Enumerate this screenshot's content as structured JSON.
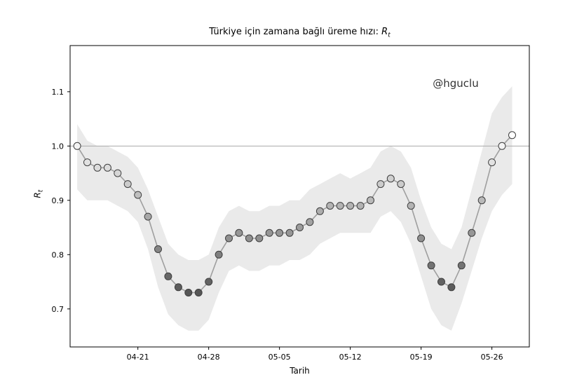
{
  "chart_data": {
    "type": "line",
    "title_prefix": "Türkiye için zamana bağlı üreme hızı: ",
    "title_math_base": "R",
    "title_math_sub": "t",
    "xlabel": "Tarih",
    "ylabel_base": "R",
    "ylabel_sub": "t",
    "annotation": "@hguclu",
    "x_dates": [
      "04-15",
      "04-16",
      "04-17",
      "04-18",
      "04-19",
      "04-20",
      "04-21",
      "04-22",
      "04-23",
      "04-24",
      "04-25",
      "04-26",
      "04-27",
      "04-28",
      "04-29",
      "04-30",
      "05-01",
      "05-02",
      "05-03",
      "05-04",
      "05-05",
      "05-06",
      "05-07",
      "05-08",
      "05-09",
      "05-10",
      "05-11",
      "05-12",
      "05-13",
      "05-14",
      "05-15",
      "05-16",
      "05-17",
      "05-18",
      "05-19",
      "05-20",
      "05-21",
      "05-22",
      "05-23",
      "05-24",
      "05-25",
      "05-26",
      "05-27",
      "05-28"
    ],
    "values": [
      1.0,
      0.97,
      0.96,
      0.96,
      0.95,
      0.93,
      0.91,
      0.87,
      0.81,
      0.76,
      0.74,
      0.73,
      0.73,
      0.75,
      0.8,
      0.83,
      0.84,
      0.83,
      0.83,
      0.84,
      0.84,
      0.84,
      0.85,
      0.86,
      0.88,
      0.89,
      0.89,
      0.89,
      0.89,
      0.9,
      0.93,
      0.94,
      0.93,
      0.89,
      0.83,
      0.78,
      0.75,
      0.74,
      0.78,
      0.84,
      0.9,
      0.97,
      1.0,
      1.02
    ],
    "band_upper": [
      1.04,
      1.01,
      1.0,
      1.0,
      0.99,
      0.98,
      0.96,
      0.92,
      0.87,
      0.82,
      0.8,
      0.79,
      0.79,
      0.8,
      0.85,
      0.88,
      0.89,
      0.88,
      0.88,
      0.89,
      0.89,
      0.9,
      0.9,
      0.92,
      0.93,
      0.94,
      0.95,
      0.94,
      0.95,
      0.96,
      0.99,
      1.0,
      0.99,
      0.96,
      0.9,
      0.85,
      0.82,
      0.81,
      0.85,
      0.92,
      0.99,
      1.06,
      1.09,
      1.11
    ],
    "band_lower": [
      0.92,
      0.9,
      0.9,
      0.9,
      0.89,
      0.88,
      0.86,
      0.81,
      0.74,
      0.69,
      0.67,
      0.66,
      0.66,
      0.68,
      0.73,
      0.77,
      0.78,
      0.77,
      0.77,
      0.78,
      0.78,
      0.79,
      0.79,
      0.8,
      0.82,
      0.83,
      0.84,
      0.84,
      0.84,
      0.84,
      0.87,
      0.88,
      0.86,
      0.82,
      0.76,
      0.7,
      0.67,
      0.66,
      0.71,
      0.77,
      0.83,
      0.88,
      0.91,
      0.93
    ],
    "hline": 1.0,
    "ylim": [
      0.63,
      1.185
    ],
    "xlim": [
      -0.7,
      44.7
    ],
    "yticks": [
      0.7,
      0.8,
      0.9,
      1.0,
      1.1
    ],
    "xticks": {
      "indices": [
        6,
        13,
        20,
        27,
        34,
        41
      ],
      "labels": [
        "04-21",
        "04-28",
        "05-05",
        "05-12",
        "05-19",
        "05-26"
      ]
    },
    "legend": "none",
    "grid": false,
    "colors": {
      "background": "#ffffff",
      "band": "#e3e3e3",
      "line": "#9f9f9f",
      "marker_edge": "#3f3f3f",
      "marker_dark": "#565656",
      "marker_light": "#ffffff",
      "hline": "#aaaaaa",
      "axis": "#000000",
      "text": "#000000",
      "annotation": "#333333"
    }
  }
}
